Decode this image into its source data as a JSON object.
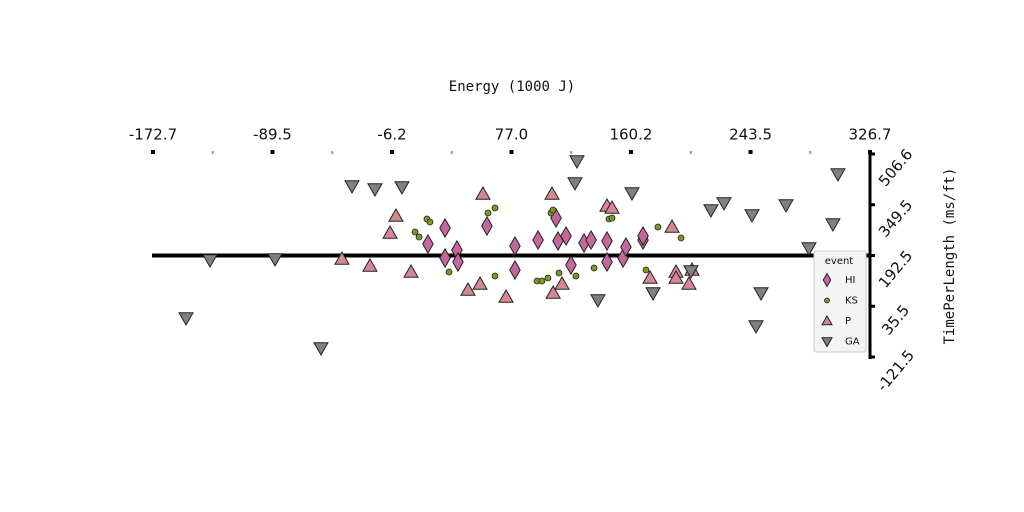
{
  "chart_data": {
    "type": "scatter",
    "xlabel": "Energy (1000 J)",
    "ylabel": "TimePerLength (ms/ft)",
    "legend_title": "event",
    "legend": "right",
    "xlim": [
      -172.7,
      326.7
    ],
    "xticks": [
      -172.7,
      -89.5,
      -6.2,
      {
        "value": 77,
        "label": "77.0"
      },
      160.2,
      243.5,
      326.7
    ],
    "ylim": [
      -121.5,
      506.6
    ],
    "yticks": [
      506.6,
      349.5,
      192.5,
      35.5,
      -121.5
    ],
    "series": [
      {
        "name": "HI",
        "color": "#c4679c",
        "marker": "diamond",
        "x": [
          18.8,
          30.7,
          30.7,
          39.0,
          39.7,
          59.9,
          79.4,
          79.4,
          95.5,
          108.0,
          109.4,
          115.0,
          118.4,
          127.5,
          132.4,
          143.5,
          143.5,
          154.7,
          156.7,
          168.6,
          168.6
        ],
        "values": [
          228.1,
          277.6,
          184.8,
          209.6,
          172.4,
          283.8,
          222.0,
          147.7,
          240.5,
          308.6,
          237.4,
          252.9,
          163.2,
          231.2,
          240.5,
          237.4,
          172.4,
          184.8,
          218.9,
          240.5,
          252.9
        ]
      },
      {
        "name": "KS",
        "color": "#7a9a1e",
        "marker": "circle",
        "x": [
          9.8,
          12.6,
          18.1,
          20.2,
          33.5,
          60.6,
          65.5,
          65.5,
          94.8,
          98.2,
          102.4,
          104.5,
          105.9,
          110.1,
          121.9,
          134.5,
          144.9,
          147.0,
          170.7,
          179.0,
          195.1
        ],
        "values": [
          265.3,
          249.8,
          305.5,
          296.2,
          141.5,
          324.1,
          339.5,
          129.1,
          113.7,
          113.7,
          122.9,
          324.1,
          333.3,
          138.4,
          129.1,
          153.9,
          305.5,
          308.6,
          147.7,
          280.7,
          246.7
        ]
      },
      {
        "name": "P",
        "color": "#d38893",
        "marker": "triangle-up",
        "x": [
          -41.1,
          -21.6,
          -7.6,
          -3.5,
          7.0,
          46.7,
          55.1,
          57.1,
          73.2,
          105.2,
          106.0,
          112.2,
          143.5,
          147.0,
          173.5,
          188.8,
          191.6,
          191.6,
          200.6,
          202.7
        ],
        "values": [
          181.7,
          160.1,
          262.2,
          314.8,
          141.5,
          85.8,
          104.4,
          382.8,
          64.2,
          382.8,
          76.5,
          104.4,
          345.7,
          339.5,
          122.9,
          280.7,
          141.5,
          122.9,
          104.4,
          147.7
        ]
      },
      {
        "name": "GA",
        "color": "#808080",
        "marker": "triangle-down",
        "x": [
          -149.7,
          -133.0,
          -87.7,
          -55.7,
          -34.1,
          -18.1,
          0.7,
          122.6,
          121.2,
          137.2,
          160.9,
          175.6,
          202.0,
          215.9,
          225.0,
          244.5,
          247.3,
          250.8,
          268.2,
          284.2,
          300.9,
          304.4
        ],
        "values": [
          -0.8,
          178.6,
          181.7,
          -93.6,
          407.6,
          398.3,
          404.5,
          484.9,
          416.9,
          54.9,
          385.9,
          76.5,
          144.6,
          333.3,
          355.0,
          317.9,
          -25.6,
          76.5,
          348.8,
          215.8,
          290.0,
          444.7
        ]
      }
    ]
  }
}
